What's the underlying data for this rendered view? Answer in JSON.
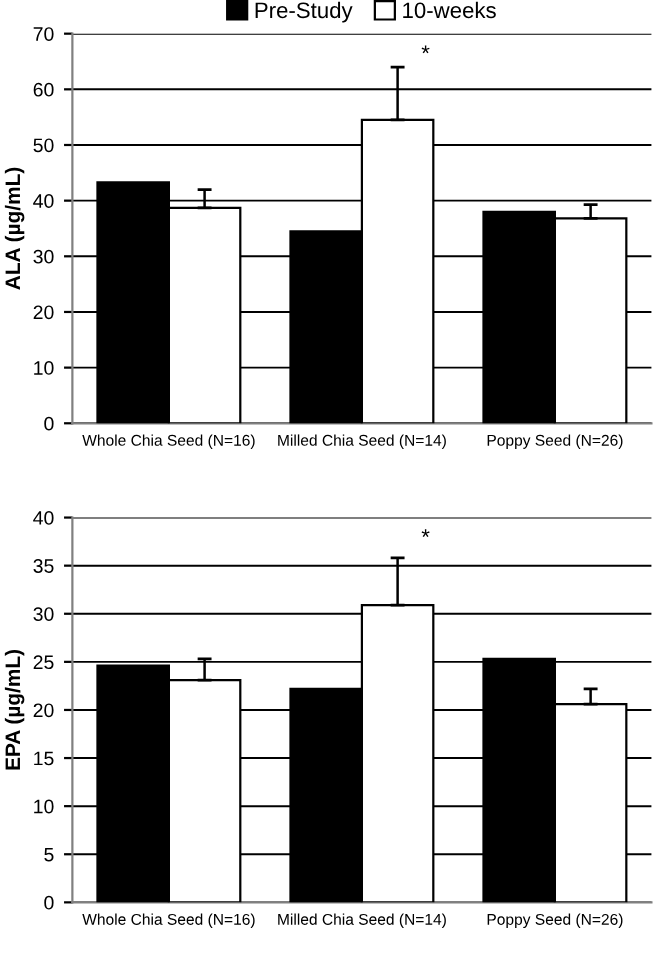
{
  "chart_data": [
    {
      "type": "bar",
      "ylabel": "ALA (µg/mL)",
      "categories": [
        "Whole Chia Seed (N=16)",
        "Milled Chia Seed (N=14)",
        "Poppy Seed (N=26)"
      ],
      "series": [
        {
          "name": "Pre-Study",
          "color": "#000000",
          "values": [
            43.3,
            34.5,
            38.0
          ]
        },
        {
          "name": "10-weeks",
          "color": "#ffffff",
          "values": [
            38.7,
            54.5,
            36.8
          ],
          "errors": [
            [
              38.7,
              42.0
            ],
            [
              54.5,
              64.0
            ],
            [
              36.8,
              39.3
            ]
          ]
        }
      ],
      "ylim": [
        0,
        70
      ],
      "yticks": [
        0,
        10,
        20,
        30,
        40,
        50,
        60,
        70
      ],
      "grid": "y",
      "legend": "top",
      "annotations": [
        "*"
      ]
    },
    {
      "type": "bar",
      "ylabel": "EPA (µg/mL)",
      "categories": [
        "Whole Chia Seed (N=16)",
        "Milled Chia Seed (N=14)",
        "Poppy Seed (N=26)"
      ],
      "series": [
        {
          "color": "#000000",
          "values": [
            24.6,
            22.2,
            25.3
          ]
        },
        {
          "color": "#ffffff",
          "values": [
            23.1,
            30.9,
            20.6
          ],
          "errors": [
            [
              23.1,
              25.3
            ],
            [
              30.9,
              35.8
            ],
            [
              20.6,
              22.2
            ]
          ]
        }
      ],
      "ylim": [
        0,
        40
      ],
      "yticks": [
        0,
        5,
        10,
        15,
        20,
        25,
        30,
        35,
        40
      ],
      "grid": "y",
      "annotations": [
        "*"
      ]
    }
  ]
}
